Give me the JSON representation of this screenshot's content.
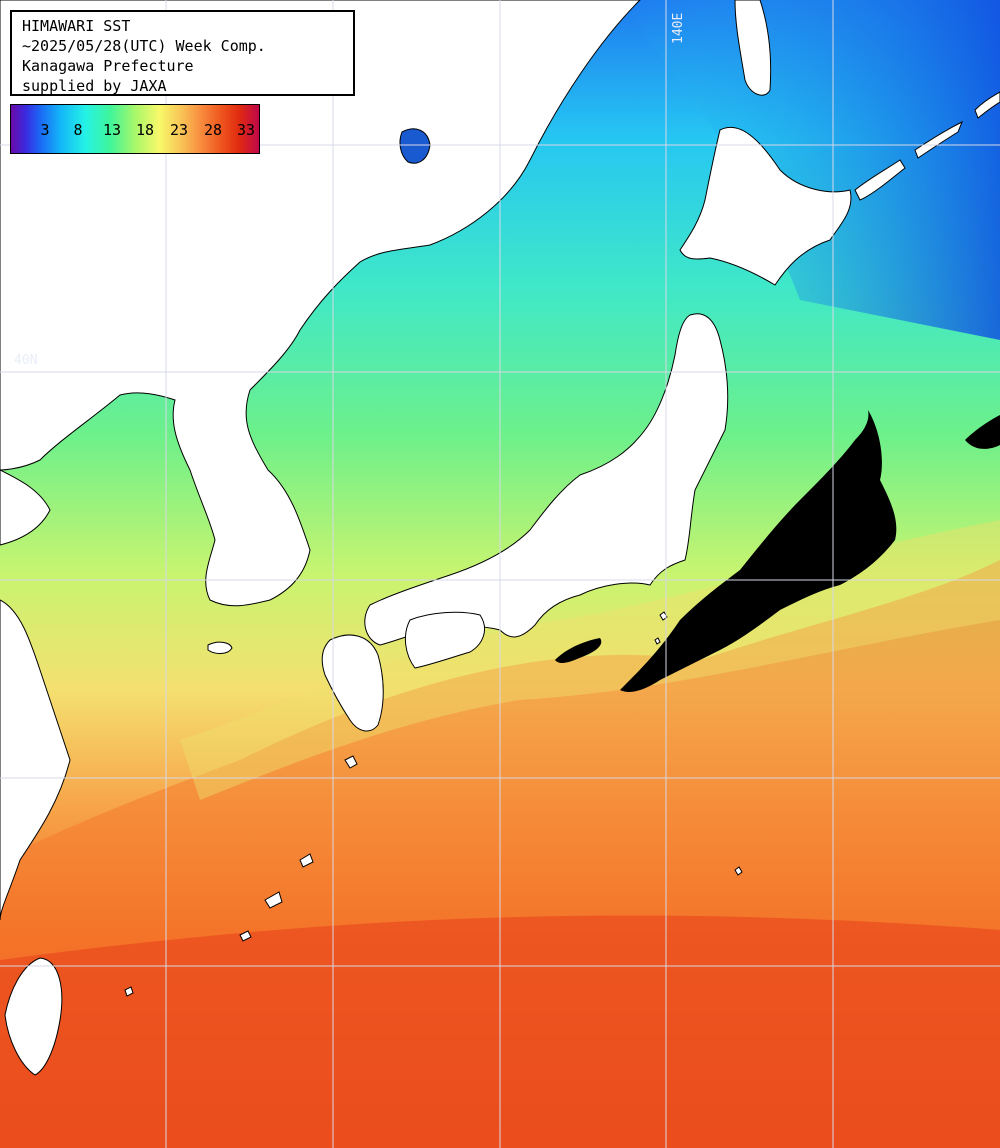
{
  "title": {
    "line1": "HIMAWARI SST",
    "line2": "~2025/05/28(UTC) Week Comp.",
    "line3": "Kanagawa Prefecture",
    "line4": "supplied by JAXA"
  },
  "legend": {
    "ticks": [
      "3",
      "8",
      "13",
      "18",
      "23",
      "28",
      "33"
    ]
  },
  "grid": {
    "lon_label": "140E",
    "lat_label": "40N"
  },
  "colors": {
    "land": "#ffffff",
    "cloud_mask": "#000000",
    "coastline": "#000000",
    "grid_lines": "#d8d8e8"
  }
}
